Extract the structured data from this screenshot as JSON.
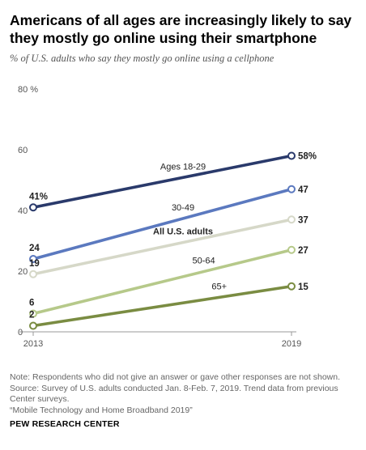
{
  "chart_data": {
    "type": "line",
    "title": "Americans of all ages are increasingly likely to say they mostly go online using their smartphone",
    "subtitle": "% of U.S. adults who say they mostly go online using a cellphone",
    "x": [
      "2013",
      "2019"
    ],
    "ylim": [
      0,
      80
    ],
    "y_ticks": [
      0,
      20,
      40,
      60,
      80
    ],
    "y_tick_labels": [
      "0",
      "20",
      "40",
      "60",
      "80 %"
    ],
    "grid": false,
    "legend": "inline labels",
    "series": [
      {
        "name": "Ages 18-29",
        "values": [
          41,
          58
        ],
        "value_labels": [
          "41%",
          "58%"
        ],
        "color": "#2a3a6b",
        "bold_name": false
      },
      {
        "name": "30-49",
        "values": [
          24,
          47
        ],
        "value_labels": [
          "24",
          "47"
        ],
        "color": "#5b79bf",
        "bold_name": false
      },
      {
        "name": "All U.S. adults",
        "values": [
          19,
          37
        ],
        "value_labels": [
          "19",
          "37"
        ],
        "color": "#d6d8c8",
        "bold_name": true
      },
      {
        "name": "50-64",
        "values": [
          6,
          27
        ],
        "value_labels": [
          "6",
          "27"
        ],
        "color": "#b6c98a",
        "bold_name": false
      },
      {
        "name": "65+",
        "values": [
          2,
          15
        ],
        "value_labels": [
          "2",
          "15"
        ],
        "color": "#7a8c42",
        "bold_name": false
      }
    ]
  },
  "notes": [
    "Note: Respondents who did not give an answer or gave other responses are not shown.",
    "Source: Survey of U.S. adults conducted Jan. 8-Feb. 7, 2019. Trend data from previous",
    "Center surveys.",
    "“Mobile Technology and Home Broadband 2019”"
  ],
  "source_org": "PEW RESEARCH CENTER"
}
